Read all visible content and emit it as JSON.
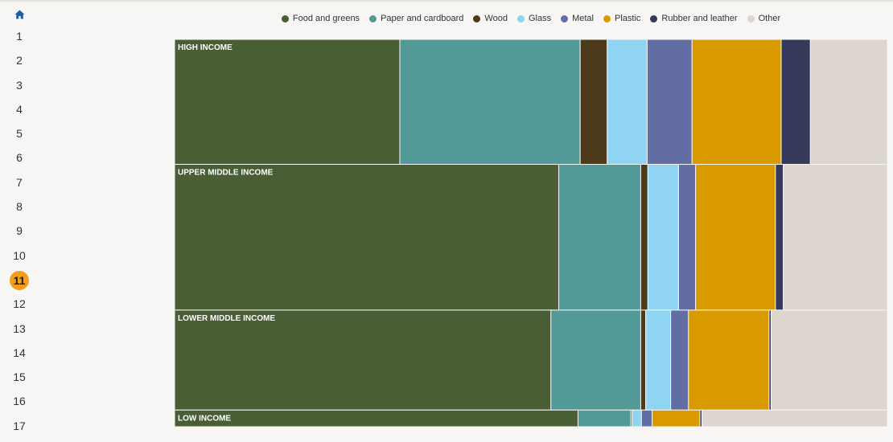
{
  "sidebar": {
    "home_icon": "home-icon",
    "steps": [
      "1",
      "2",
      "3",
      "4",
      "5",
      "6",
      "7",
      "8",
      "9",
      "10",
      "11",
      "12",
      "13",
      "14",
      "15",
      "16",
      "17"
    ],
    "active_step": "11",
    "accent_color": "#f59c1a"
  },
  "chart_data": {
    "type": "mekko",
    "title": "",
    "xlabel": "",
    "ylabel": "",
    "categories": [
      "Food and greens",
      "Paper and cardboard",
      "Wood",
      "Glass",
      "Metal",
      "Plastic",
      "Rubber and leather",
      "Other"
    ],
    "colors": [
      "#4a5e35",
      "#519a98",
      "#4c3a1b",
      "#8fd4f2",
      "#626ea3",
      "#d99a00",
      "#353a5a",
      "#dcd6cf"
    ],
    "legend_position": "top",
    "groups": [
      {
        "name": "HIGH INCOME",
        "height_share": 30,
        "shares": [
          31.6,
          25.3,
          3.8,
          5.6,
          6.3,
          12.5,
          4.1,
          10.8
        ]
      },
      {
        "name": "UPPER MIDDLE INCOME",
        "height_share": 35,
        "shares": [
          53.9,
          11.5,
          1.0,
          4.3,
          2.4,
          11.2,
          1.1,
          14.6
        ]
      },
      {
        "name": "LOWER MIDDLE INCOME",
        "height_share": 24,
        "shares": [
          52.8,
          12.6,
          0.7,
          3.5,
          2.5,
          11.3,
          0.3,
          16.3
        ]
      },
      {
        "name": "LOW INCOME",
        "height_share": 4,
        "shares": [
          56.6,
          7.4,
          0.2,
          1.3,
          1.5,
          6.7,
          0.3,
          26.0
        ]
      }
    ]
  }
}
